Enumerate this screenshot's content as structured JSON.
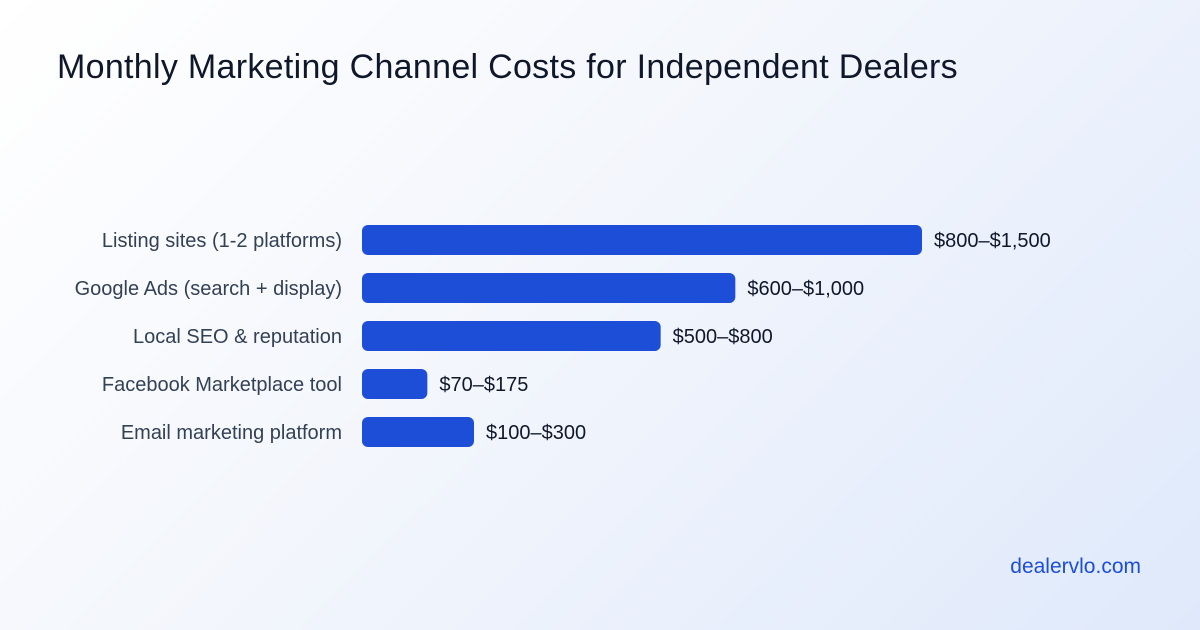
{
  "chart_data": {
    "type": "bar",
    "orientation": "horizontal",
    "title": "Monthly Marketing Channel Costs for Independent Dealers",
    "categories": [
      "Listing sites (1-2 platforms)",
      "Google Ads (search + display)",
      "Local SEO & reputation",
      "Facebook Marketplace tool",
      "Email marketing platform"
    ],
    "values": [
      1500,
      1000,
      800,
      175,
      300
    ],
    "ranges": [
      [
        800,
        1500
      ],
      [
        600,
        1000
      ],
      [
        500,
        800
      ],
      [
        70,
        175
      ],
      [
        100,
        300
      ]
    ],
    "value_labels": [
      "$800–$1,500",
      "$600–$1,000",
      "$500–$800",
      "$70–$175",
      "$100–$300"
    ],
    "bar_color": "#1d4ed8",
    "xlabel": "",
    "ylabel": "",
    "grid": false
  },
  "footer": {
    "site": "dealervlo.com"
  },
  "colors": {
    "accent": "#1d4ed8",
    "title": "#0f172a",
    "label": "#334155"
  }
}
